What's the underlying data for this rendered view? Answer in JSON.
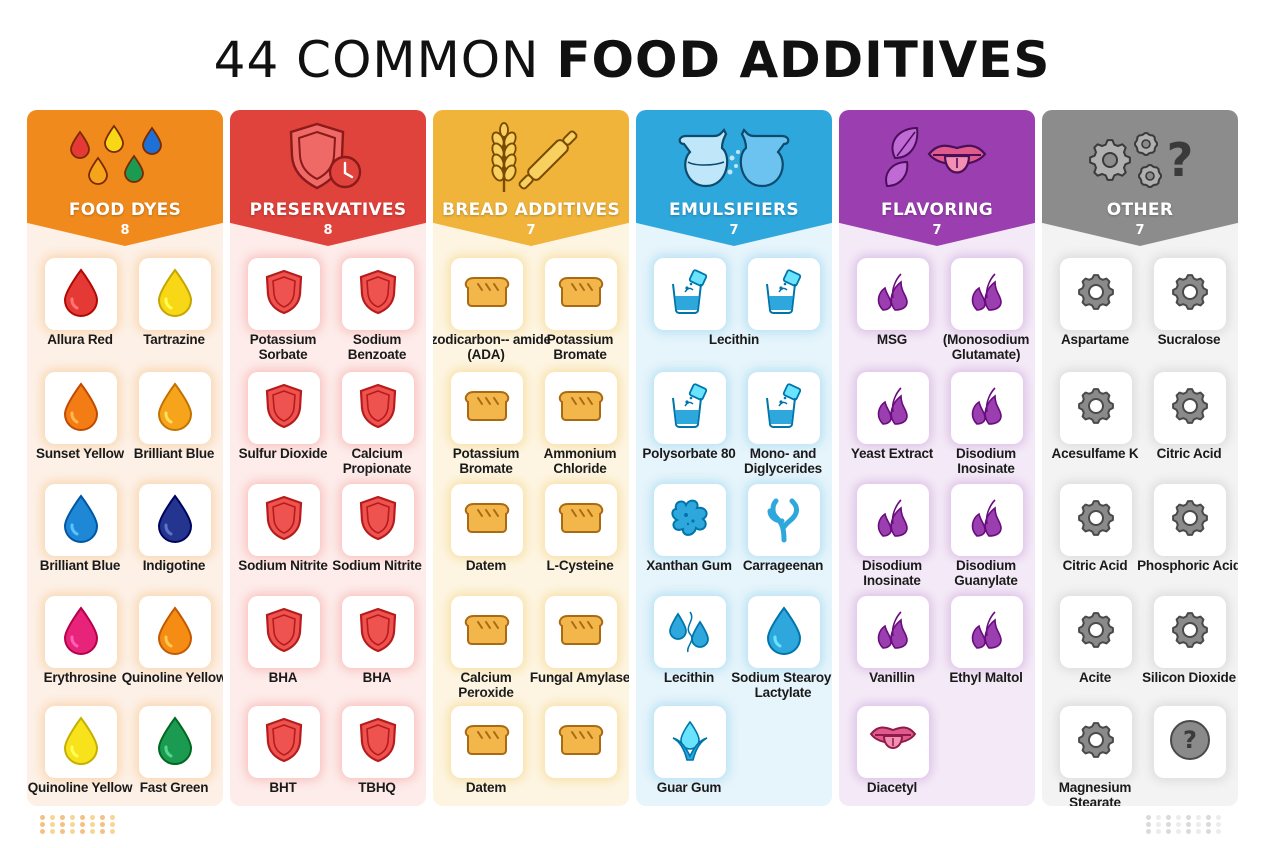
{
  "title": {
    "light": "44 COMMON",
    "bold": "FOOD ADDITIVES"
  },
  "columns": [
    {
      "name": "FOOD DYES",
      "count": "8",
      "header_color": "#f08a1c",
      "body_color": "#fdf0e6",
      "glow": "#f9d6b0",
      "header_icon": "drops-icon",
      "items": [
        {
          "label": "Allura Red",
          "icon": "drop-icon",
          "color": "#e53935"
        },
        {
          "label": "Tartrazine",
          "icon": "drop-icon",
          "color": "#f7d716"
        },
        {
          "label": "Sunset Yellow",
          "icon": "drop-icon",
          "color": "#f47c14"
        },
        {
          "label": "Brilliant Blue",
          "icon": "drop-icon",
          "color": "#f5a41c"
        },
        {
          "label": "Brilliant Blue",
          "icon": "drop-icon",
          "color": "#1e88d6"
        },
        {
          "label": "Indigotine",
          "icon": "drop-icon",
          "color": "#23358f"
        },
        {
          "label": "Erythrosine",
          "icon": "drop-icon",
          "color": "#e8247a"
        },
        {
          "label": "Quinoline Yellow",
          "icon": "drop-icon",
          "color": "#f58c14"
        },
        {
          "label": "Quinoline Yellow",
          "icon": "drop-icon",
          "color": "#f7e21c"
        },
        {
          "label": "Fast Green",
          "icon": "drop-icon",
          "color": "#1b9a52"
        }
      ]
    },
    {
      "name": "PRESERVATIVES",
      "count": "8",
      "header_color": "#e0423c",
      "body_color": "#fdecea",
      "glow": "#f8c3c0",
      "header_icon": "shield-clock-icon",
      "items": [
        {
          "label": "Potassium Sorbate",
          "icon": "shield-icon",
          "color": "#ef5350"
        },
        {
          "label": "Sodium Benzoate",
          "icon": "shield-icon",
          "color": "#ef5350"
        },
        {
          "label": "Sulfur Dioxide",
          "icon": "shield-icon",
          "color": "#ef5350"
        },
        {
          "label": "Calcium Propionate",
          "icon": "shield-icon",
          "color": "#ef5350"
        },
        {
          "label": "Sodium Nitrite",
          "icon": "shield-icon",
          "color": "#ef5350"
        },
        {
          "label": "Sodium Nitrite",
          "icon": "shield-icon",
          "color": "#ef5350"
        },
        {
          "label": "BHA",
          "icon": "shield-icon",
          "color": "#ef5350"
        },
        {
          "label": "BHA",
          "icon": "shield-icon",
          "color": "#ef5350"
        },
        {
          "label": "BHT",
          "icon": "shield-icon",
          "color": "#ef5350"
        },
        {
          "label": "TBHQ",
          "icon": "shield-icon",
          "color": "#ef5350"
        }
      ]
    },
    {
      "name": "BREAD ADDITIVES",
      "count": "7",
      "header_color": "#f0b43a",
      "body_color": "#fdf5e2",
      "glow": "#f8e0a8",
      "header_icon": "wheat-rolling-pin-icon",
      "items": [
        {
          "label": "Azodicarbon-- amide (ADA)",
          "icon": "bread-icon",
          "color": "#f3b64a"
        },
        {
          "label": "Potassium Bromate",
          "icon": "bread-icon",
          "color": "#f3b64a"
        },
        {
          "label": "Potassium Bromate",
          "icon": "bread-icon",
          "color": "#f3b64a"
        },
        {
          "label": "Ammonium Chloride",
          "icon": "bread-icon",
          "color": "#f3b64a"
        },
        {
          "label": "Datem",
          "icon": "bread-icon",
          "color": "#f3b64a"
        },
        {
          "label": "L-Cysteine",
          "icon": "bread-icon",
          "color": "#f3b64a"
        },
        {
          "label": "Calcium Peroxide",
          "icon": "bread-icon",
          "color": "#f3b64a"
        },
        {
          "label": "Fungal Amylase",
          "icon": "bread-icon",
          "color": "#f3b64a"
        },
        {
          "label": "Datem",
          "icon": "bread-icon",
          "color": "#f3b64a"
        },
        {
          "label": "",
          "icon": "bread-icon",
          "color": "#f3b64a"
        }
      ]
    },
    {
      "name": "EMULSIFIERS",
      "count": "7",
      "header_color": "#2ea7dd",
      "body_color": "#e6f4fb",
      "glow": "#b8e1f4",
      "header_icon": "pitchers-icon",
      "items": [
        {
          "label": "",
          "icon": "powder-glass-icon",
          "color": "#2ea7dd"
        },
        {
          "label": "",
          "icon": "powder-glass-icon",
          "color": "#2ea7dd"
        },
        {
          "label": "Polysorbate 80",
          "icon": "powder-glass-icon",
          "color": "#2ea7dd"
        },
        {
          "label": "Mono- and Diglycerides",
          "icon": "powder-glass-icon",
          "color": "#2ea7dd"
        },
        {
          "label": "Xanthan Gum",
          "icon": "splat-icon",
          "color": "#2ea7dd"
        },
        {
          "label": "Carrageenan",
          "icon": "seaweed-icon",
          "color": "#2ea7dd"
        },
        {
          "label": "Lecithin",
          "icon": "droplets-icon",
          "color": "#2ea7dd"
        },
        {
          "label": "Sodium Stearoyl Lactylate",
          "icon": "drop-icon",
          "color": "#2ea7dd"
        },
        {
          "label": "Guar Gum",
          "icon": "plant-icon",
          "color": "#2ea7dd"
        }
      ],
      "span_label": "Lecithin"
    },
    {
      "name": "FLAVORING",
      "count": "7",
      "header_color": "#9b3fb0",
      "body_color": "#f4eaf7",
      "glow": "#dcc0e6",
      "header_icon": "leaf-tongue-icon",
      "items": [
        {
          "label": "MSG",
          "icon": "aroma-icon",
          "color": "#9b3fb0"
        },
        {
          "label": "(Monosodium Glutamate)",
          "icon": "aroma-icon",
          "color": "#9b3fb0"
        },
        {
          "label": "Yeast Extract",
          "icon": "aroma-icon",
          "color": "#9b3fb0"
        },
        {
          "label": "Disodium Inosinate",
          "icon": "aroma-icon",
          "color": "#9b3fb0"
        },
        {
          "label": "Disodium Inosinate",
          "icon": "aroma-icon",
          "color": "#9b3fb0"
        },
        {
          "label": "Disodium Guanylate",
          "icon": "aroma-icon",
          "color": "#9b3fb0"
        },
        {
          "label": "Vanillin",
          "icon": "aroma-icon",
          "color": "#9b3fb0"
        },
        {
          "label": "Ethyl Maltol",
          "icon": "aroma-icon",
          "color": "#9b3fb0"
        },
        {
          "label": "Diacetyl",
          "icon": "tongue-icon",
          "color": "#e05a8c"
        }
      ]
    },
    {
      "name": "OTHER",
      "count": "7",
      "header_color": "#8c8c8c",
      "body_color": "#f3f3f3",
      "glow": "#dcdcdc",
      "header_icon": "gears-question-icon",
      "items": [
        {
          "label": "Aspartame",
          "icon": "gear-icon",
          "color": "#777777"
        },
        {
          "label": "Sucralose",
          "icon": "gear-icon",
          "color": "#777777"
        },
        {
          "label": "Acesulfame K",
          "icon": "gear-icon",
          "color": "#777777"
        },
        {
          "label": "Citric Acid",
          "icon": "gear-icon",
          "color": "#777777"
        },
        {
          "label": "Citric Acid",
          "icon": "gear-icon",
          "color": "#777777"
        },
        {
          "label": "Phosphoric Acid",
          "icon": "gear-icon",
          "color": "#777777"
        },
        {
          "label": "Acite",
          "icon": "gear-icon",
          "color": "#777777"
        },
        {
          "label": "Silicon Dioxide",
          "icon": "gear-icon",
          "color": "#777777"
        },
        {
          "label": "Magnesium Stearate",
          "icon": "gear-icon",
          "color": "#777777"
        },
        {
          "label": "",
          "icon": "question-icon",
          "color": "#777777"
        }
      ]
    }
  ]
}
